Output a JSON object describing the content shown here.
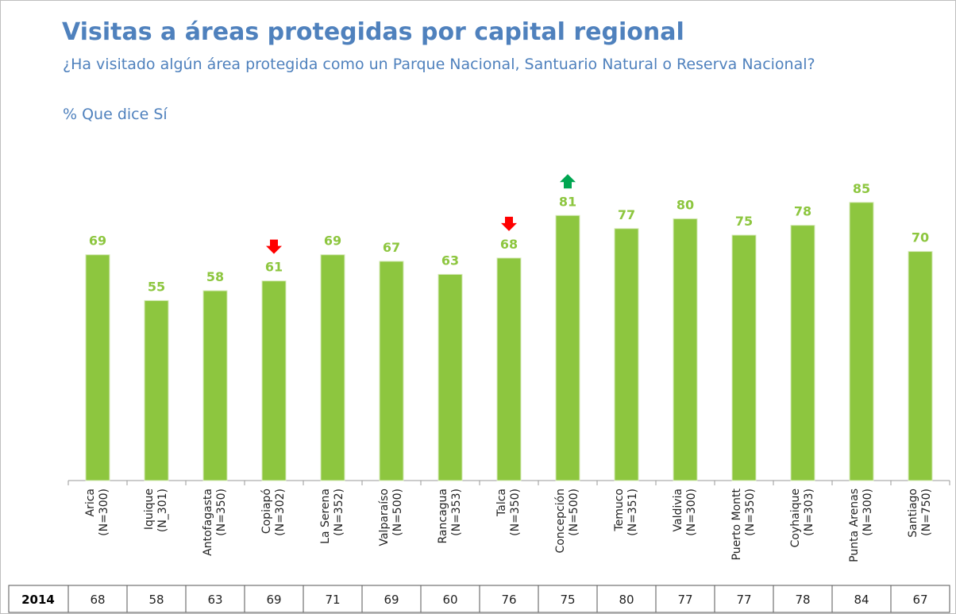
{
  "chart_data": {
    "type": "bar",
    "title": "Visitas a áreas protegidas por capital regional",
    "subtitle": "¿Ha visitado algún área protegida como un Parque Nacional, Santuario Natural o Reserva Nacional?",
    "measure": "% Que dice Sí",
    "categories": [
      "Arica",
      "Iquique",
      "Antofagasta",
      "Copiapó",
      "La  Serena",
      "Valparaíso",
      "Rancagua",
      "Talca",
      "Concepción",
      "Temuco",
      "Valdivia",
      "Puerto Montt",
      "Coyhaique",
      "Punta Arenas",
      "Santiago"
    ],
    "sample_sizes": [
      "(N=300)",
      "(N_301)",
      "(N=350)",
      "(N=302)",
      "(N=352)",
      "(N=500)",
      "(N=353)",
      "(N=350)",
      "(N=500)",
      "(N=351)",
      "(N=300)",
      "(N=350)",
      "(N=303)",
      "(N=300)",
      "(N=750)"
    ],
    "values": [
      69,
      55,
      58,
      61,
      69,
      67,
      63,
      68,
      81,
      77,
      80,
      75,
      78,
      85,
      70
    ],
    "trend": [
      null,
      null,
      null,
      "down",
      null,
      null,
      null,
      "down",
      "up",
      null,
      null,
      null,
      null,
      null,
      null
    ],
    "color": "#8dc63f",
    "ylim": [
      0,
      100
    ],
    "comparison": {
      "label": "2014",
      "values": [
        68,
        58,
        63,
        69,
        71,
        69,
        60,
        76,
        75,
        80,
        77,
        77,
        78,
        84,
        67
      ]
    }
  }
}
